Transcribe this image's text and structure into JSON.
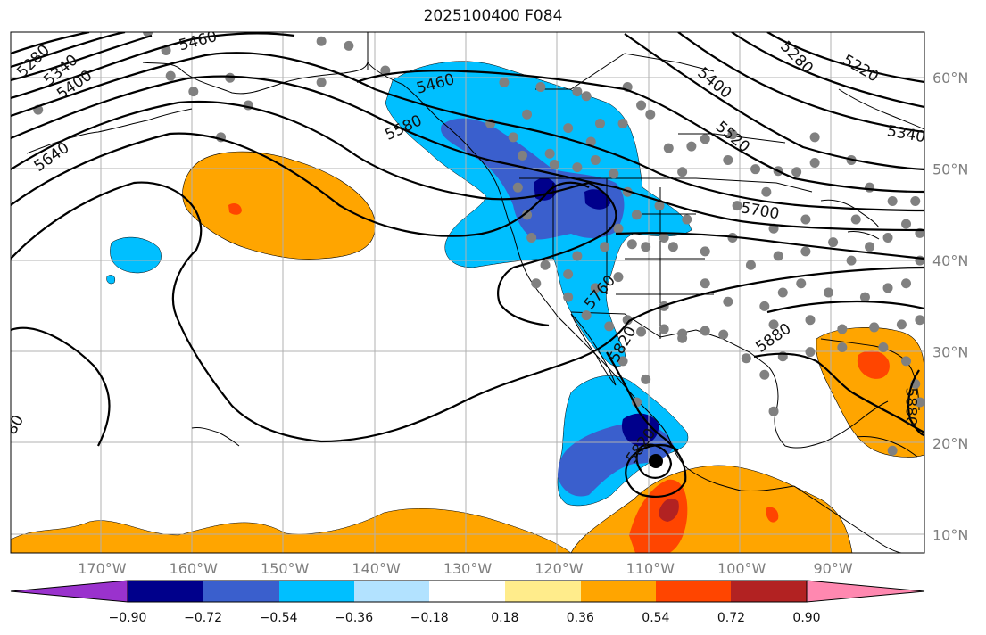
{
  "title": "2025100400 F084",
  "colors": {
    "land_outline": "#000000",
    "grid": "#b0b0b0",
    "dot": "#808080",
    "contour": "#000000",
    "purple": "#9a32cd",
    "navy": "#00008b",
    "blue": "#3a5fcd",
    "deepsky": "#00bfff",
    "lightblue": "#b2e2ff",
    "white": "#ffffff",
    "yellow": "#ffec8b",
    "orange": "#ffa500",
    "orangered": "#ff4500",
    "firebrick": "#b22222",
    "pink": "#ff88b0"
  },
  "map": {
    "lon_range": [
      -180,
      -80
    ],
    "lat_range": [
      8,
      65
    ],
    "lon_ticks": [
      {
        "value": -170,
        "label": "170°W"
      },
      {
        "value": -160,
        "label": "160°W"
      },
      {
        "value": -150,
        "label": "150°W"
      },
      {
        "value": -140,
        "label": "140°W"
      },
      {
        "value": -130,
        "label": "130°W"
      },
      {
        "value": -120,
        "label": "120°W"
      },
      {
        "value": -110,
        "label": "110°W"
      },
      {
        "value": -100,
        "label": "100°W"
      },
      {
        "value": -90,
        "label": "90°W"
      }
    ],
    "lat_ticks": [
      {
        "value": 60,
        "label": "60°N"
      },
      {
        "value": 50,
        "label": "50°N"
      },
      {
        "value": 40,
        "label": "40°N"
      },
      {
        "value": 30,
        "label": "30°N"
      },
      {
        "value": 20,
        "label": "20°N"
      },
      {
        "value": 10,
        "label": "10°N"
      }
    ],
    "contour_labels": [
      {
        "text": "5280",
        "lon": -177.5,
        "lat": 61.8,
        "rot": -45
      },
      {
        "text": "5340",
        "lon": -174.5,
        "lat": 60.8,
        "rot": -40
      },
      {
        "text": "5400",
        "lon": -173,
        "lat": 59.2,
        "rot": -35
      },
      {
        "text": "5460",
        "lon": -159.5,
        "lat": 64,
        "rot": -15
      },
      {
        "text": "5640",
        "lon": -175.5,
        "lat": 51.3,
        "rot": -35
      },
      {
        "text": "5460",
        "lon": -133.5,
        "lat": 59.3,
        "rot": -15
      },
      {
        "text": "5580",
        "lon": -137,
        "lat": 54.5,
        "rot": -25
      },
      {
        "text": "5400",
        "lon": -103,
        "lat": 59.4,
        "rot": 40
      },
      {
        "text": "5280",
        "lon": -94,
        "lat": 62.2,
        "rot": 45
      },
      {
        "text": "5220",
        "lon": -87,
        "lat": 61,
        "rot": 30
      },
      {
        "text": "5340",
        "lon": -82,
        "lat": 53.8,
        "rot": 10
      },
      {
        "text": "5520",
        "lon": -101,
        "lat": 53.5,
        "rot": 40
      },
      {
        "text": "5700",
        "lon": -98,
        "lat": 45.4,
        "rot": 10
      },
      {
        "text": "5760",
        "lon": -115.5,
        "lat": 36.5,
        "rot": -50
      },
      {
        "text": "5820",
        "lon": -113,
        "lat": 30.8,
        "rot": -60
      },
      {
        "text": "5880",
        "lon": -96.5,
        "lat": 31.5,
        "rot": -35
      },
      {
        "text": "5880",
        "lon": -81.5,
        "lat": 24,
        "rot": 90
      },
      {
        "text": "5820",
        "lon": -111,
        "lat": 19.7,
        "rot": -55
      },
      {
        "text": "80",
        "lon": -179.5,
        "lat": 22,
        "rot": -60
      }
    ],
    "station_dots": [
      [
        -165,
        65
      ],
      [
        -163,
        63
      ],
      [
        -162.5,
        60.2
      ],
      [
        -160,
        58.5
      ],
      [
        -177,
        56.5
      ],
      [
        -156,
        60
      ],
      [
        -154,
        57
      ],
      [
        -157,
        53.5
      ],
      [
        -146,
        64
      ],
      [
        -143,
        63.5
      ],
      [
        -146,
        59.5
      ],
      [
        -139,
        60.8
      ],
      [
        -126,
        59.5
      ],
      [
        -122,
        59
      ],
      [
        -118,
        58.5
      ],
      [
        -123.5,
        56
      ],
      [
        -117,
        58
      ],
      [
        -112.5,
        59
      ],
      [
        -111,
        57
      ],
      [
        -110,
        56
      ],
      [
        -113,
        55
      ],
      [
        -115.5,
        55
      ],
      [
        -119,
        54.5
      ],
      [
        -127.5,
        55
      ],
      [
        -125,
        53.5
      ],
      [
        -124,
        51.5
      ],
      [
        -121,
        51.7
      ],
      [
        -120.5,
        50.5
      ],
      [
        -118,
        50.2
      ],
      [
        -116.5,
        53
      ],
      [
        -116,
        51
      ],
      [
        -114,
        49.5
      ],
      [
        -112.5,
        47.5
      ],
      [
        -104,
        53.3
      ],
      [
        -105.5,
        52.5
      ],
      [
        -108,
        52.3
      ],
      [
        -106.5,
        49.7
      ],
      [
        -101,
        53.8
      ],
      [
        -101.5,
        51
      ],
      [
        -98.5,
        50
      ],
      [
        -96,
        49.8
      ],
      [
        -94,
        49.7
      ],
      [
        -92,
        50.7
      ],
      [
        -92,
        53.5
      ],
      [
        -88,
        51
      ],
      [
        -86,
        48
      ],
      [
        -97.3,
        47.5
      ],
      [
        -100.5,
        46
      ],
      [
        -101,
        42.5
      ],
      [
        -104,
        41
      ],
      [
        -107.5,
        41.5
      ],
      [
        -110.5,
        41.5
      ],
      [
        -115,
        41.5
      ],
      [
        -118,
        40.5
      ],
      [
        -119,
        38.5
      ],
      [
        -116,
        37
      ],
      [
        -113.5,
        38.2
      ],
      [
        -112,
        41.8
      ],
      [
        -108.5,
        42.5
      ],
      [
        -106,
        44.5
      ],
      [
        -109,
        46
      ],
      [
        -111.5,
        45
      ],
      [
        -113.5,
        43.5
      ],
      [
        -124.5,
        48
      ],
      [
        -123.5,
        45
      ],
      [
        -123,
        42.5
      ],
      [
        -121.5,
        39.5
      ],
      [
        -122.5,
        37.5
      ],
      [
        -119,
        36
      ],
      [
        -117,
        34
      ],
      [
        -112.5,
        33.5
      ],
      [
        -108.5,
        35
      ],
      [
        -106.5,
        32
      ],
      [
        -104,
        37.5
      ],
      [
        -101.5,
        35.5
      ],
      [
        -99,
        39.5
      ],
      [
        -96,
        40.5
      ],
      [
        -93,
        41
      ],
      [
        -90,
        42
      ],
      [
        -88,
        40
      ],
      [
        -86,
        41.5
      ],
      [
        -84,
        42.5
      ],
      [
        -82,
        44
      ],
      [
        -83.5,
        46.5
      ],
      [
        -87.5,
        44.5
      ],
      [
        -93,
        44.5
      ],
      [
        -96.5,
        43.5
      ],
      [
        -95.5,
        36.5
      ],
      [
        -93.5,
        37.5
      ],
      [
        -90.5,
        36.5
      ],
      [
        -86.5,
        36
      ],
      [
        -84,
        37
      ],
      [
        -82,
        37.5
      ],
      [
        -80.5,
        40
      ],
      [
        -80.5,
        43
      ],
      [
        -81,
        46.5
      ],
      [
        -97.5,
        35
      ],
      [
        -92.5,
        33.5
      ],
      [
        -89,
        32.5
      ],
      [
        -85.5,
        32.7
      ],
      [
        -82.5,
        33
      ],
      [
        -80.5,
        33.5
      ],
      [
        -96.5,
        33
      ],
      [
        -99.5,
        29.3
      ],
      [
        -97.5,
        27.5
      ],
      [
        -95.5,
        29.5
      ],
      [
        -92.5,
        30
      ],
      [
        -89,
        30.5
      ],
      [
        -84.5,
        30.5
      ],
      [
        -82,
        29
      ],
      [
        -81,
        26.5
      ],
      [
        -106.5,
        31.5
      ],
      [
        -104,
        32.3
      ],
      [
        -102,
        31.9
      ],
      [
        -108.5,
        32.5
      ],
      [
        -111,
        32.2
      ],
      [
        -114.5,
        32.8
      ],
      [
        -111.5,
        24.5
      ],
      [
        -110.5,
        27
      ],
      [
        -113,
        29
      ],
      [
        -83.5,
        19.2
      ],
      [
        -96.5,
        23.5
      ],
      [
        -80.5,
        24.5
      ]
    ],
    "colorbar": {
      "levels": [
        "-0.90",
        "-0.72",
        "-0.54",
        "-0.36",
        "-0.18",
        "0.18",
        "0.36",
        "0.54",
        "0.72",
        "0.90"
      ]
    }
  }
}
